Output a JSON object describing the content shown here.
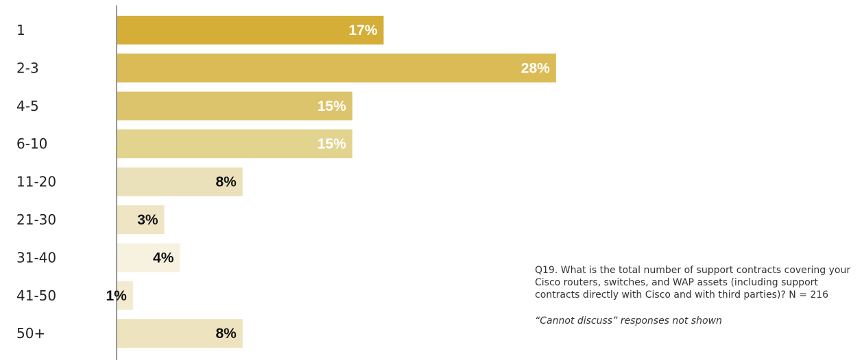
{
  "chart_data": {
    "type": "bar",
    "orientation": "horizontal",
    "categories": [
      "1",
      "2-3",
      "4-5",
      "6-10",
      "11-20",
      "21-30",
      "31-40",
      "41-50",
      "50+"
    ],
    "values": [
      17,
      28,
      15,
      15,
      8,
      3,
      4,
      1,
      8
    ],
    "value_labels": [
      "17%",
      "28%",
      "15%",
      "15%",
      "8%",
      "3%",
      "4%",
      "1%",
      "8%"
    ],
    "bar_colors": [
      "#D4AE36",
      "#DBBB55",
      "#DCC46C",
      "#E2D38F",
      "#EAE1BA",
      "#EFE5C4",
      "#F7F1E0",
      "#F3EBD0",
      "#EDE3BF"
    ],
    "label_colors": [
      "#ffffff",
      "#ffffff",
      "#ffffff",
      "#ffffff",
      "#111111",
      "#111111",
      "#111111",
      "#111111",
      "#111111"
    ],
    "unit": "%",
    "grid": false
  },
  "note": {
    "question": "Q19. What is the total number of support contracts covering your Cisco routers, switches, and WAP assets (including support contracts directly with Cisco and with third parties)? N = 216",
    "footnote": "“Cannot discuss” responses not shown"
  }
}
